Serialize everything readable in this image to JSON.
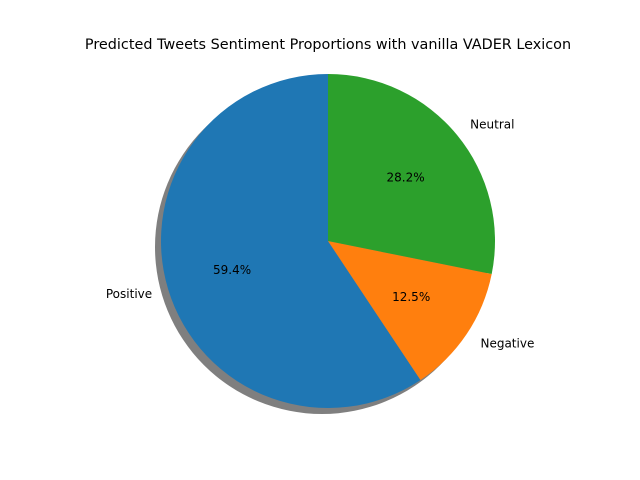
{
  "chart_data": {
    "type": "pie",
    "title": "Predicted Tweets Sentiment Proportions with vanilla VADER Lexicon",
    "labels": [
      "Positive",
      "Negative",
      "Neutral"
    ],
    "values": [
      59.4,
      12.5,
      28.2
    ],
    "percent_labels": [
      "59.4%",
      "12.5%",
      "28.2%"
    ],
    "colors": [
      "#1f77b4",
      "#ff7f0e",
      "#2ca02c"
    ],
    "start_angle_deg": 90,
    "direction": "counterclockwise",
    "shadow": true,
    "legend": "none"
  }
}
